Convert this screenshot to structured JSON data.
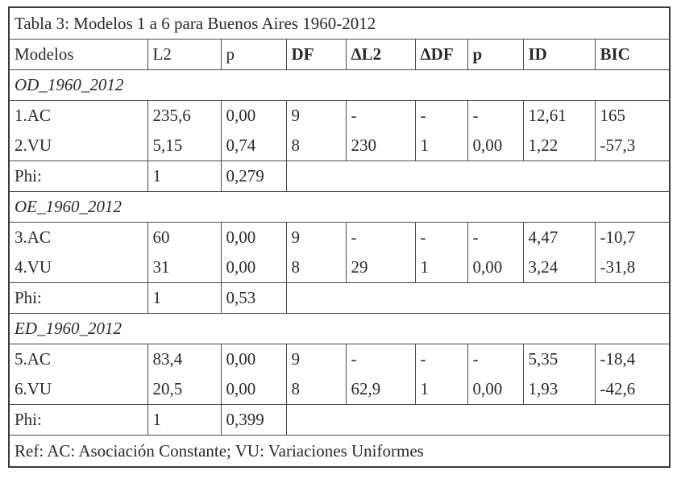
{
  "title": "Tabla 3: Modelos 1 a 6 para Buenos Aires 1960-2012",
  "headers": [
    "Modelos",
    "L2",
    "p",
    "DF",
    "ΔL2",
    "ΔDF",
    "p",
    "ID",
    "BIC"
  ],
  "groups": [
    {
      "label": "OD_1960_2012",
      "rows": [
        [
          "1.AC",
          "235,6",
          "0,00",
          "9",
          "-",
          "-",
          "-",
          "12,61",
          "165"
        ],
        [
          "2.VU",
          "5,15",
          "0,74",
          "8",
          "230",
          "1",
          "0,00",
          "1,22",
          "-57,3"
        ]
      ],
      "phi": [
        "Phi:",
        "1",
        "0,279"
      ]
    },
    {
      "label": "OE_1960_2012",
      "rows": [
        [
          "3.AC",
          "60",
          "0,00",
          "9",
          "-",
          "-",
          "-",
          "4,47",
          "-10,7"
        ],
        [
          "4.VU",
          "31",
          "0,00",
          "8",
          "29",
          "1",
          "0,00",
          "3,24",
          "-31,8"
        ]
      ],
      "phi": [
        "Phi:",
        "1",
        "0,53"
      ]
    },
    {
      "label": "ED_1960_2012",
      "rows": [
        [
          "5.AC",
          "83,4",
          "0,00",
          "9",
          "-",
          "-",
          "-",
          "5,35",
          "-18,4"
        ],
        [
          "6.VU",
          "20,5",
          "0,00",
          "8",
          "62,9",
          "1",
          "0,00",
          "1,93",
          "-42,6"
        ]
      ],
      "phi": [
        "Phi:",
        "1",
        "0,399"
      ]
    }
  ],
  "footer": "Ref: AC: Asociación Constante; VU: Variaciones Uniformes"
}
